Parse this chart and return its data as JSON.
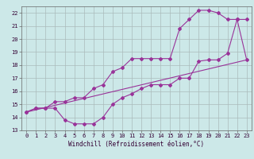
{
  "background_color": "#cce8e8",
  "grid_color": "#aabbbb",
  "line_color": "#993399",
  "xlim": [
    -0.5,
    23.5
  ],
  "ylim": [
    13.0,
    22.5
  ],
  "xticks": [
    0,
    1,
    2,
    3,
    4,
    5,
    6,
    7,
    8,
    9,
    10,
    11,
    12,
    13,
    14,
    15,
    16,
    17,
    18,
    19,
    20,
    21,
    22,
    23
  ],
  "yticks": [
    13,
    14,
    15,
    16,
    17,
    18,
    19,
    20,
    21,
    22
  ],
  "line1_x": [
    0,
    1,
    2,
    3,
    4,
    5,
    6,
    7,
    8,
    9,
    10,
    11,
    12,
    13,
    14,
    15,
    16,
    17,
    18,
    19,
    20,
    21,
    22,
    23
  ],
  "line1_y": [
    14.4,
    14.7,
    14.7,
    14.7,
    13.8,
    13.5,
    13.5,
    13.5,
    14.0,
    15.0,
    15.5,
    15.8,
    16.2,
    16.5,
    16.5,
    16.5,
    17.0,
    17.0,
    18.3,
    18.4,
    18.4,
    18.9,
    21.5,
    18.4
  ],
  "line2_x": [
    0,
    1,
    2,
    3,
    4,
    5,
    6,
    7,
    8,
    9,
    10,
    11,
    12,
    13,
    14,
    15,
    16,
    17,
    18,
    19,
    20,
    21,
    22,
    23
  ],
  "line2_y": [
    14.4,
    14.7,
    14.7,
    15.2,
    15.2,
    15.5,
    15.5,
    16.2,
    16.5,
    17.5,
    17.8,
    18.5,
    18.5,
    18.5,
    18.5,
    18.5,
    20.8,
    21.5,
    22.2,
    22.2,
    22.0,
    21.5,
    21.5,
    21.5
  ],
  "line3_x": [
    0,
    23
  ],
  "line3_y": [
    14.4,
    18.4
  ],
  "xlabel": "Windchill (Refroidissement éolien,°C)",
  "tick_fontsize": 5.0,
  "xlabel_fontsize": 5.5
}
